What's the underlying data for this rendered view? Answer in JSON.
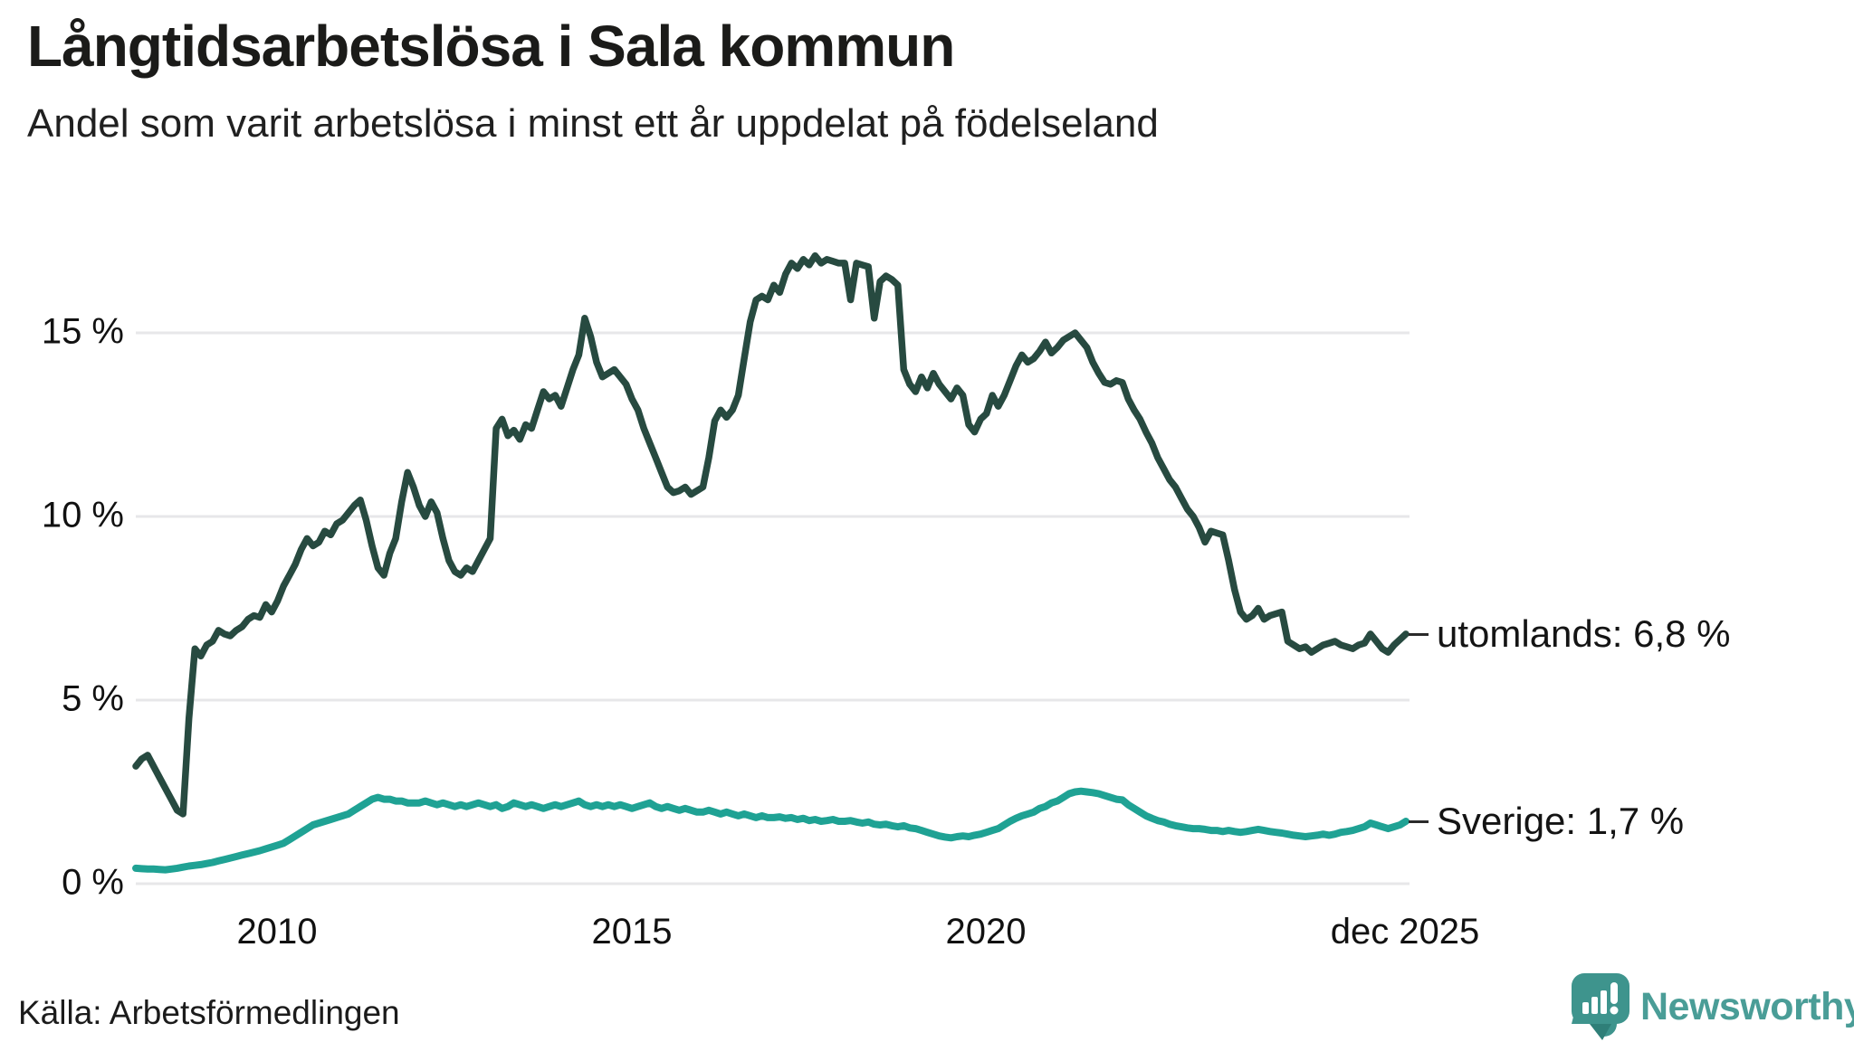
{
  "header": {
    "title": "Långtidsarbetslösa i Sala kommun",
    "subtitle": "Andel som varit arbetslösa i minst ett år uppdelat på födelseland"
  },
  "footer": {
    "source": "Källa: Arbetsförmedlingen",
    "brand": "Newsworthy"
  },
  "colors": {
    "series_utomlands": "#274a40",
    "series_sverige": "#1fa294",
    "gridline": "#e7e7e9",
    "brand_teal": "#4a9d97",
    "brand_icon": "#3e948d",
    "brand_icon_dark": "#2f7f78"
  },
  "chart_data": {
    "type": "line",
    "title": "Långtidsarbetslösa i Sala kommun",
    "subtitle": "Andel som varit arbetslösa i minst ett år uppdelat på födelseland",
    "unit": "%",
    "grid": true,
    "ylim": [
      0,
      17.5
    ],
    "x_range": {
      "start": "jan 2008",
      "end": "dec 2025",
      "frequency": "monthly"
    },
    "y_ticks": [
      {
        "value": 0,
        "label": "0 %"
      },
      {
        "value": 5,
        "label": "5 %"
      },
      {
        "value": 10,
        "label": "10 %"
      },
      {
        "value": 15,
        "label": "15 %"
      }
    ],
    "x_ticks": [
      {
        "label": "2010",
        "month_index": 24
      },
      {
        "label": "2015",
        "month_index": 84
      },
      {
        "label": "2020",
        "month_index": 144
      },
      {
        "label": "dec 2025",
        "month_index": 215
      }
    ],
    "series": [
      {
        "name": "utomlands",
        "end_label": "utomlands: 6,8 %",
        "end_value": 6.8,
        "color": "#274a40",
        "values": [
          3.2,
          3.4,
          3.5,
          3.2,
          2.9,
          2.6,
          2.3,
          2.0,
          1.9,
          4.5,
          6.4,
          6.2,
          6.5,
          6.6,
          6.9,
          6.8,
          6.75,
          6.9,
          7.0,
          7.2,
          7.3,
          7.25,
          7.6,
          7.4,
          7.7,
          8.1,
          8.4,
          8.7,
          9.1,
          9.4,
          9.2,
          9.3,
          9.6,
          9.5,
          9.8,
          9.9,
          10.1,
          10.3,
          10.45,
          9.9,
          9.2,
          8.6,
          8.4,
          9.0,
          9.4,
          10.4,
          11.2,
          10.8,
          10.3,
          10.0,
          10.4,
          10.1,
          9.4,
          8.8,
          8.5,
          8.4,
          8.6,
          8.5,
          8.8,
          9.1,
          9.4,
          12.4,
          12.65,
          12.2,
          12.35,
          12.1,
          12.5,
          12.4,
          12.9,
          13.4,
          13.2,
          13.3,
          13.0,
          13.5,
          14.0,
          14.4,
          15.4,
          14.9,
          14.2,
          13.8,
          13.9,
          14.0,
          13.8,
          13.6,
          13.2,
          12.9,
          12.4,
          12.0,
          11.6,
          11.2,
          10.8,
          10.65,
          10.7,
          10.8,
          10.6,
          10.7,
          10.8,
          11.6,
          12.6,
          12.9,
          12.7,
          12.9,
          13.3,
          14.3,
          15.3,
          15.9,
          16.0,
          15.9,
          16.3,
          16.1,
          16.6,
          16.9,
          16.75,
          17.0,
          16.85,
          17.1,
          16.9,
          17.0,
          16.95,
          16.9,
          16.9,
          15.9,
          16.9,
          16.85,
          16.8,
          15.4,
          16.4,
          16.55,
          16.45,
          16.3,
          14.0,
          13.6,
          13.4,
          13.8,
          13.5,
          13.9,
          13.6,
          13.4,
          13.2,
          13.5,
          13.3,
          12.5,
          12.3,
          12.65,
          12.8,
          13.3,
          13.0,
          13.3,
          13.7,
          14.1,
          14.4,
          14.2,
          14.3,
          14.5,
          14.75,
          14.45,
          14.6,
          14.8,
          14.9,
          15.0,
          14.8,
          14.6,
          14.2,
          13.9,
          13.65,
          13.6,
          13.7,
          13.65,
          13.2,
          12.9,
          12.65,
          12.3,
          12.0,
          11.6,
          11.3,
          11.0,
          10.8,
          10.5,
          10.2,
          10.0,
          9.7,
          9.3,
          9.6,
          9.55,
          9.5,
          8.8,
          8.0,
          7.4,
          7.2,
          7.3,
          7.5,
          7.2,
          7.3,
          7.35,
          7.4,
          6.6,
          6.5,
          6.4,
          6.45,
          6.3,
          6.4,
          6.5,
          6.55,
          6.6,
          6.5,
          6.45,
          6.4,
          6.5,
          6.55,
          6.8,
          6.6,
          6.4,
          6.3,
          6.5,
          6.65,
          6.8
        ]
      },
      {
        "name": "Sverige",
        "end_label": "Sverige: 1,7 %",
        "end_value": 1.7,
        "color": "#1fa294",
        "values": [
          0.42,
          0.41,
          0.4,
          0.4,
          0.39,
          0.38,
          0.4,
          0.42,
          0.45,
          0.48,
          0.5,
          0.52,
          0.55,
          0.58,
          0.62,
          0.66,
          0.7,
          0.74,
          0.78,
          0.82,
          0.86,
          0.9,
          0.95,
          1.0,
          1.05,
          1.1,
          1.2,
          1.3,
          1.4,
          1.5,
          1.6,
          1.65,
          1.7,
          1.75,
          1.8,
          1.85,
          1.9,
          2.0,
          2.1,
          2.2,
          2.3,
          2.35,
          2.3,
          2.3,
          2.25,
          2.25,
          2.2,
          2.2,
          2.2,
          2.25,
          2.2,
          2.15,
          2.2,
          2.15,
          2.1,
          2.15,
          2.1,
          2.15,
          2.2,
          2.15,
          2.1,
          2.15,
          2.05,
          2.1,
          2.2,
          2.15,
          2.1,
          2.15,
          2.1,
          2.05,
          2.1,
          2.15,
          2.1,
          2.15,
          2.2,
          2.25,
          2.15,
          2.1,
          2.15,
          2.1,
          2.15,
          2.1,
          2.15,
          2.1,
          2.05,
          2.1,
          2.15,
          2.2,
          2.1,
          2.05,
          2.1,
          2.05,
          2.0,
          2.05,
          2.0,
          1.95,
          1.95,
          2.0,
          1.95,
          1.9,
          1.95,
          1.9,
          1.85,
          1.9,
          1.85,
          1.8,
          1.85,
          1.8,
          1.8,
          1.82,
          1.78,
          1.8,
          1.75,
          1.78,
          1.72,
          1.75,
          1.7,
          1.72,
          1.75,
          1.7,
          1.7,
          1.72,
          1.68,
          1.65,
          1.68,
          1.62,
          1.6,
          1.62,
          1.58,
          1.55,
          1.58,
          1.52,
          1.5,
          1.45,
          1.4,
          1.35,
          1.3,
          1.27,
          1.25,
          1.28,
          1.3,
          1.28,
          1.32,
          1.35,
          1.4,
          1.45,
          1.5,
          1.6,
          1.7,
          1.78,
          1.85,
          1.9,
          1.95,
          2.05,
          2.1,
          2.2,
          2.25,
          2.35,
          2.45,
          2.5,
          2.52,
          2.5,
          2.48,
          2.45,
          2.4,
          2.35,
          2.3,
          2.28,
          2.15,
          2.05,
          1.95,
          1.85,
          1.78,
          1.72,
          1.68,
          1.62,
          1.58,
          1.55,
          1.52,
          1.5,
          1.5,
          1.48,
          1.45,
          1.45,
          1.42,
          1.45,
          1.42,
          1.4,
          1.42,
          1.45,
          1.48,
          1.45,
          1.42,
          1.4,
          1.38,
          1.35,
          1.32,
          1.3,
          1.28,
          1.3,
          1.32,
          1.35,
          1.32,
          1.35,
          1.4,
          1.42,
          1.45,
          1.5,
          1.55,
          1.65,
          1.6,
          1.55,
          1.5,
          1.55,
          1.6,
          1.7
        ]
      }
    ]
  }
}
